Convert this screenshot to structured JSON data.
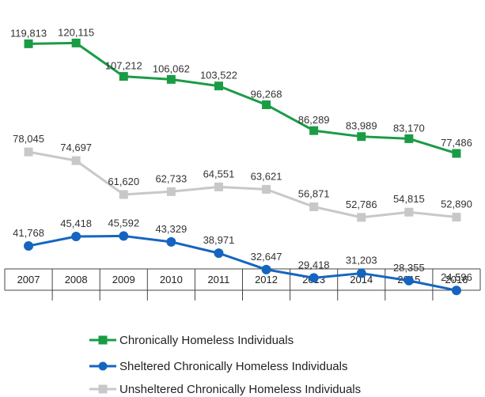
{
  "chart_data": {
    "type": "line",
    "title": "",
    "xlabel": "",
    "ylabel": "",
    "x": [
      "2007",
      "2008",
      "2009",
      "2010",
      "2011",
      "2012",
      "2013",
      "2014",
      "2015",
      "2016"
    ],
    "ylim": [
      10000,
      130000
    ],
    "grid": false,
    "legend_position": "bottom",
    "series": [
      {
        "key": "chronic",
        "name": "Chronically Homeless Individuals",
        "marker": "square",
        "color": "#1a9c45",
        "values": [
          119813,
          120115,
          107212,
          106062,
          103522,
          96268,
          86289,
          83989,
          83170,
          77486
        ],
        "labels": [
          "119,813",
          "120,115",
          "107,212",
          "106,062",
          "103,522",
          "96,268",
          "86,289",
          "83,989",
          "83,170",
          "77,486"
        ]
      },
      {
        "key": "unsheltered",
        "name": "Unsheltered Chronically Homeless Individuals",
        "marker": "square",
        "color": "#c8c8c8",
        "values": [
          78045,
          74697,
          61620,
          62733,
          64551,
          63621,
          56871,
          52786,
          54815,
          52890
        ],
        "labels": [
          "78,045",
          "74,697",
          "61,620",
          "62,733",
          "64,551",
          "63,621",
          "56,871",
          "52,786",
          "54,815",
          "52,890"
        ]
      },
      {
        "key": "sheltered",
        "name": "Sheltered Chronically Homeless Individuals",
        "marker": "circle",
        "color": "#1565c0",
        "values": [
          41768,
          45418,
          45592,
          43329,
          38971,
          32647,
          29418,
          31203,
          28355,
          24596
        ],
        "labels": [
          "41,768",
          "45,418",
          "45,592",
          "43,329",
          "38,971",
          "32,647",
          "29,418",
          "31,203",
          "28,355",
          "24,596"
        ]
      }
    ],
    "legend": [
      {
        "series": "chronic",
        "label": "Chronically Homeless Individuals"
      },
      {
        "series": "sheltered",
        "label": "Sheltered Chronically Homeless Individuals"
      },
      {
        "series": "unsheltered",
        "label": "Unsheltered Chronically Homeless Individuals"
      }
    ]
  }
}
